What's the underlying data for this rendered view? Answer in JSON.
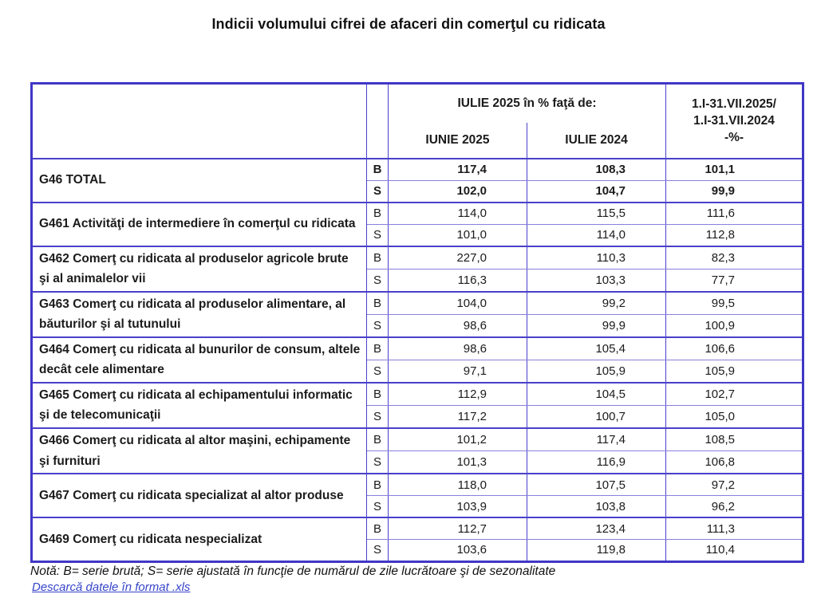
{
  "title": "Indicii volumului cifrei de afaceri din comerţul cu ridicata",
  "table": {
    "header": {
      "group_label": "IULIE 2025 în % faţă de:",
      "sub1": "IUNIE 2025",
      "sub2": "IULIE 2024",
      "period_lines": [
        "1.I-31.VII.2025/",
        "1.I-31.VII.2024",
        "-%-"
      ]
    },
    "markers": {
      "b": "B",
      "s": "S"
    },
    "rows": [
      {
        "label": "G46 TOTAL",
        "emphasis": true,
        "b": [
          "117,4",
          "108,3",
          "101,1"
        ],
        "s": [
          "102,0",
          "104,7",
          "99,9"
        ]
      },
      {
        "label": "G461 Activităţi de intermediere în comerţul cu ridicata",
        "emphasis": false,
        "b": [
          "114,0",
          "115,5",
          "111,6"
        ],
        "s": [
          "101,0",
          "114,0",
          "112,8"
        ]
      },
      {
        "label": "G462 Comerţ cu ridicata al produselor  agricole brute şi al animalelor vii",
        "emphasis": false,
        "b": [
          "227,0",
          "110,3",
          "82,3"
        ],
        "s": [
          "116,3",
          "103,3",
          "77,7"
        ]
      },
      {
        "label": "G463 Comerţ cu ridicata al produselor alimentare, al băuturilor şi al tutunului",
        "emphasis": false,
        "b": [
          "104,0",
          "99,2",
          "99,5"
        ],
        "s": [
          "98,6",
          "99,9",
          "100,9"
        ]
      },
      {
        "label": "G464 Comerţ cu ridicata al bunurilor de consum, altele decât cele alimentare",
        "emphasis": false,
        "b": [
          "98,6",
          "105,4",
          "106,6"
        ],
        "s": [
          "97,1",
          "105,9",
          "105,9"
        ]
      },
      {
        "label": "G465 Comerţ cu ridicata al echipamentului informatic şi de telecomunicaţii",
        "emphasis": false,
        "b": [
          "112,9",
          "104,5",
          "102,7"
        ],
        "s": [
          "117,2",
          "100,7",
          "105,0"
        ]
      },
      {
        "label": "G466 Comerţ cu ridicata al altor maşini, echipamente şi furnituri",
        "emphasis": false,
        "b": [
          "101,2",
          "117,4",
          "108,5"
        ],
        "s": [
          "101,3",
          "116,9",
          "106,8"
        ]
      },
      {
        "label": "G467 Comerţ cu ridicata specializat al altor produse",
        "emphasis": false,
        "b": [
          "118,0",
          "107,5",
          "97,2"
        ],
        "s": [
          "103,9",
          "103,8",
          "96,2"
        ]
      },
      {
        "label": "G469 Comerţ cu ridicata nespecializat",
        "emphasis": false,
        "b": [
          "112,7",
          "123,4",
          "111,3"
        ],
        "s": [
          "103,6",
          "119,8",
          "110,4"
        ]
      }
    ]
  },
  "note": "Notă: B= serie brută; S= serie ajustată în funcţie de numărul de zile lucrătoare şi de sezonalitate",
  "link_text": "Descarcă datele în format .xls",
  "colors": {
    "border": "#4136c6",
    "grid": "#4a40ca",
    "link": "#3544c8"
  }
}
